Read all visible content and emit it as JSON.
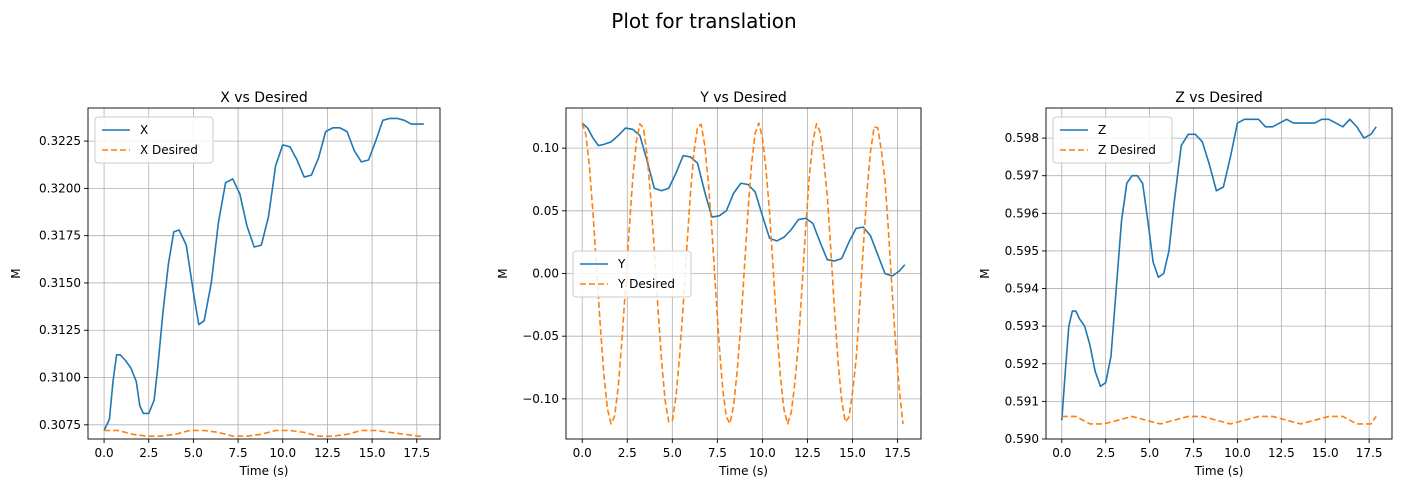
{
  "figure": {
    "title": "Plot for translation"
  },
  "colors": {
    "actual": "#1f77b4",
    "desired": "#ff7f0e",
    "grid": "#b0b0b0"
  },
  "chart_data": [
    {
      "type": "line",
      "title": "X vs Desired",
      "xlabel": "Time (s)",
      "ylabel": "M",
      "xlim": [
        -0.9,
        18.8
      ],
      "ylim": [
        0.30675,
        0.32425
      ],
      "xticks": [
        0.0,
        2.5,
        5.0,
        7.5,
        10.0,
        12.5,
        15.0,
        17.5
      ],
      "xtick_labels": [
        "0.0",
        "2.5",
        "5.0",
        "7.5",
        "10.0",
        "12.5",
        "15.0",
        "17.5"
      ],
      "yticks": [
        0.3075,
        0.31,
        0.3125,
        0.315,
        0.3175,
        0.32,
        0.3225
      ],
      "ytick_labels": [
        "0.3075",
        "0.3100",
        "0.3125",
        "0.3150",
        "0.3175",
        "0.3200",
        "0.3225"
      ],
      "grid": true,
      "legend": "upper-left",
      "series": [
        {
          "name": "X",
          "style": "solid",
          "x": [
            0,
            0.3,
            0.5,
            0.7,
            0.9,
            1.2,
            1.5,
            1.8,
            2.0,
            2.2,
            2.5,
            2.8,
            3.0,
            3.3,
            3.6,
            3.9,
            4.2,
            4.6,
            5.0,
            5.3,
            5.6,
            6.0,
            6.4,
            6.8,
            7.2,
            7.6,
            8.0,
            8.4,
            8.8,
            9.2,
            9.6,
            10.0,
            10.4,
            10.8,
            11.2,
            11.6,
            12.0,
            12.4,
            12.8,
            13.2,
            13.6,
            14.0,
            14.4,
            14.8,
            15.2,
            15.6,
            16.0,
            16.4,
            16.8,
            17.2,
            17.6,
            17.9
          ],
          "y": [
            0.3072,
            0.3078,
            0.3098,
            0.3112,
            0.3112,
            0.3109,
            0.3105,
            0.3098,
            0.3085,
            0.3081,
            0.3081,
            0.3088,
            0.3105,
            0.3135,
            0.316,
            0.3177,
            0.3178,
            0.317,
            0.3145,
            0.3128,
            0.313,
            0.315,
            0.3182,
            0.3203,
            0.3205,
            0.3197,
            0.318,
            0.3169,
            0.317,
            0.3185,
            0.3212,
            0.3223,
            0.3222,
            0.3215,
            0.3206,
            0.3207,
            0.3216,
            0.323,
            0.3232,
            0.3232,
            0.323,
            0.322,
            0.3214,
            0.3215,
            0.3225,
            0.3236,
            0.3237,
            0.3237,
            0.3236,
            0.3234,
            0.3234,
            0.3234
          ]
        },
        {
          "name": "X Desired",
          "style": "dashed",
          "x": [
            0,
            0.8,
            1.6,
            2.4,
            3.2,
            4.0,
            4.8,
            5.6,
            6.4,
            7.2,
            8.0,
            8.8,
            9.6,
            10.4,
            11.2,
            12.0,
            12.8,
            13.6,
            14.4,
            15.2,
            16.0,
            16.8,
            17.6,
            17.9
          ],
          "y": [
            0.3072,
            0.3072,
            0.307,
            0.3069,
            0.3069,
            0.307,
            0.3072,
            0.3072,
            0.3071,
            0.3069,
            0.3069,
            0.307,
            0.3072,
            0.3072,
            0.3071,
            0.3069,
            0.3069,
            0.307,
            0.3072,
            0.3072,
            0.3071,
            0.307,
            0.3069,
            0.3069
          ]
        }
      ]
    },
    {
      "type": "line",
      "title": "Y vs Desired",
      "xlabel": "Time (s)",
      "ylabel": "M",
      "xlim": [
        -0.9,
        18.8
      ],
      "ylim": [
        -0.132,
        0.132
      ],
      "xticks": [
        0.0,
        2.5,
        5.0,
        7.5,
        10.0,
        12.5,
        15.0,
        17.5
      ],
      "xtick_labels": [
        "0.0",
        "2.5",
        "5.0",
        "7.5",
        "10.0",
        "12.5",
        "15.0",
        "17.5"
      ],
      "yticks": [
        -0.1,
        -0.05,
        0.0,
        0.05,
        0.1
      ],
      "ytick_labels": [
        "−0.10",
        "−0.05",
        "0.00",
        "0.05",
        "0.10"
      ],
      "grid": true,
      "legend": "center-left",
      "series": [
        {
          "name": "Y",
          "style": "solid",
          "x": [
            0,
            0.3,
            0.6,
            0.9,
            1.2,
            1.6,
            2.0,
            2.4,
            2.8,
            3.2,
            3.6,
            4.0,
            4.4,
            4.8,
            5.2,
            5.6,
            6.0,
            6.4,
            6.8,
            7.2,
            7.6,
            8.0,
            8.4,
            8.8,
            9.2,
            9.6,
            10.0,
            10.4,
            10.8,
            11.2,
            11.6,
            12.0,
            12.4,
            12.8,
            13.2,
            13.6,
            14.0,
            14.4,
            14.8,
            15.2,
            15.6,
            16.0,
            16.4,
            16.8,
            17.2,
            17.6,
            17.9
          ],
          "y": [
            0.12,
            0.116,
            0.108,
            0.102,
            0.103,
            0.105,
            0.11,
            0.116,
            0.115,
            0.11,
            0.09,
            0.068,
            0.066,
            0.068,
            0.08,
            0.094,
            0.093,
            0.088,
            0.065,
            0.045,
            0.046,
            0.05,
            0.064,
            0.072,
            0.071,
            0.065,
            0.046,
            0.028,
            0.026,
            0.029,
            0.035,
            0.043,
            0.044,
            0.04,
            0.025,
            0.011,
            0.01,
            0.012,
            0.025,
            0.036,
            0.037,
            0.03,
            0.015,
            0.0,
            -0.002,
            0.002,
            0.007
          ]
        },
        {
          "name": "Y Desired",
          "style": "dashed",
          "x": [
            0,
            0.2,
            0.4,
            0.6,
            0.8,
            1.0,
            1.2,
            1.4,
            1.6,
            1.8,
            2.0,
            2.2,
            2.4,
            2.6,
            2.8,
            3.0,
            3.2,
            3.4,
            3.6,
            3.8,
            4.0,
            4.2,
            4.4,
            4.6,
            4.8,
            5.0,
            5.2,
            5.4,
            5.6,
            5.8,
            6.0,
            6.2,
            6.4,
            6.6,
            6.8,
            7.0,
            7.2,
            7.4,
            7.6,
            7.8,
            8.0,
            8.2,
            8.4,
            8.6,
            8.8,
            9.0,
            9.2,
            9.4,
            9.6,
            9.8,
            10.0,
            10.2,
            10.4,
            10.6,
            10.8,
            11.0,
            11.2,
            11.4,
            11.6,
            11.8,
            12.0,
            12.2,
            12.4,
            12.6,
            12.8,
            13.0,
            13.2,
            13.4,
            13.6,
            13.8,
            14.0,
            14.2,
            14.4,
            14.6,
            14.8,
            15.0,
            15.2,
            15.4,
            15.6,
            15.8,
            16.0,
            16.2,
            16.4,
            16.6,
            16.8,
            17.0,
            17.2,
            17.4,
            17.6,
            17.8
          ],
          "y": [
            0.12,
            0.111,
            0.0855,
            0.0477,
            0.0038,
            -0.0409,
            -0.0803,
            -0.108,
            -0.1199,
            -0.1137,
            -0.0902,
            -0.0543,
            -0.0114,
            0.0339,
            0.0748,
            0.1048,
            0.1194,
            0.1159,
            0.0946,
            0.0606,
            0.0189,
            -0.0268,
            -0.069,
            -0.1012,
            -0.1183,
            -0.1177,
            -0.0986,
            -0.0667,
            -0.0264,
            0.0195,
            0.0629,
            0.0972,
            0.1166,
            0.119,
            0.1022,
            0.0724,
            0.0338,
            -0.012,
            -0.0565,
            -0.0928,
            -0.1144,
            -0.1197,
            -0.1054,
            -0.0778,
            -0.0411,
            0.0045,
            0.0499,
            0.088,
            0.1118,
            0.12,
            0.1083,
            0.0828,
            0.0482,
            0.003,
            -0.0431,
            -0.0828,
            -0.1088,
            -0.1199,
            -0.1108,
            -0.0872,
            -0.0552,
            -0.0105,
            0.0361,
            0.0771,
            0.1053,
            0.1194,
            0.1129,
            0.0912,
            0.0619,
            0.0179,
            -0.029,
            -0.0712,
            -0.1015,
            -0.1184,
            -0.1147,
            -0.0949,
            -0.0684,
            -0.0253,
            0.0217,
            0.065,
            0.0975,
            0.117,
            0.1161,
            0.0982,
            0.0744,
            0.0326,
            -0.0143,
            -0.0586,
            -0.0932,
            -0.12
          ]
        }
      ]
    },
    {
      "type": "line",
      "title": "Z vs Desired",
      "xlabel": "Time (s)",
      "ylabel": "M",
      "xlim": [
        -0.9,
        18.8
      ],
      "ylim": [
        0.59,
        0.5988
      ],
      "xticks": [
        0.0,
        2.5,
        5.0,
        7.5,
        10.0,
        12.5,
        15.0,
        17.5
      ],
      "xtick_labels": [
        "0.0",
        "2.5",
        "5.0",
        "7.5",
        "10.0",
        "12.5",
        "15.0",
        "17.5"
      ],
      "yticks": [
        0.59,
        0.591,
        0.592,
        0.593,
        0.594,
        0.595,
        0.596,
        0.597,
        0.598
      ],
      "ytick_labels": [
        "0.590",
        "0.591",
        "0.592",
        "0.593",
        "0.594",
        "0.595",
        "0.596",
        "0.597",
        "0.598"
      ],
      "grid": true,
      "legend": "upper-left",
      "series": [
        {
          "name": "Z",
          "style": "solid",
          "x": [
            0,
            0.2,
            0.4,
            0.6,
            0.8,
            1.0,
            1.3,
            1.6,
            1.9,
            2.2,
            2.5,
            2.8,
            3.1,
            3.4,
            3.7,
            4.0,
            4.3,
            4.6,
            4.9,
            5.2,
            5.5,
            5.8,
            6.1,
            6.4,
            6.8,
            7.2,
            7.6,
            8.0,
            8.4,
            8.8,
            9.2,
            9.6,
            10.0,
            10.4,
            10.8,
            11.2,
            11.6,
            12.0,
            12.4,
            12.8,
            13.2,
            13.6,
            14.0,
            14.4,
            14.8,
            15.2,
            15.6,
            16.0,
            16.4,
            16.8,
            17.2,
            17.6,
            17.9
          ],
          "y": [
            0.5905,
            0.5918,
            0.593,
            0.5934,
            0.5934,
            0.5932,
            0.593,
            0.5925,
            0.5918,
            0.5914,
            0.5915,
            0.5922,
            0.594,
            0.5958,
            0.5968,
            0.597,
            0.597,
            0.5968,
            0.5958,
            0.5947,
            0.5943,
            0.5944,
            0.595,
            0.5963,
            0.5978,
            0.5981,
            0.5981,
            0.5979,
            0.5973,
            0.5966,
            0.5967,
            0.5975,
            0.5984,
            0.5985,
            0.5985,
            0.5985,
            0.5983,
            0.5983,
            0.5984,
            0.5985,
            0.5984,
            0.5984,
            0.5984,
            0.5984,
            0.5985,
            0.5985,
            0.5984,
            0.5983,
            0.5985,
            0.5983,
            0.598,
            0.5981,
            0.5983
          ]
        },
        {
          "name": "Z Desired",
          "style": "dashed",
          "x": [
            0,
            0.8,
            1.2,
            1.6,
            2.4,
            3.2,
            4.0,
            4.8,
            5.6,
            6.4,
            7.2,
            8.0,
            8.8,
            9.6,
            10.4,
            11.2,
            12.0,
            12.8,
            13.6,
            14.4,
            15.2,
            16.0,
            16.8,
            17.6,
            17.9
          ],
          "y": [
            0.5906,
            0.5906,
            0.5905,
            0.5904,
            0.5904,
            0.5905,
            0.5906,
            0.5905,
            0.5904,
            0.5905,
            0.5906,
            0.5906,
            0.5905,
            0.5904,
            0.5905,
            0.5906,
            0.5906,
            0.5905,
            0.5904,
            0.5905,
            0.5906,
            0.5906,
            0.5904,
            0.5904,
            0.5906
          ]
        }
      ]
    }
  ]
}
